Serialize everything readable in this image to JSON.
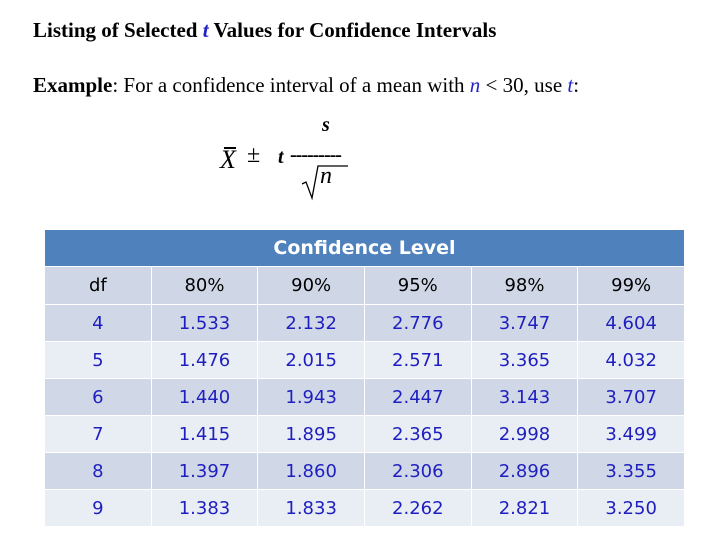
{
  "title": {
    "before": "Listing of Selected ",
    "t": "t",
    "after": " Values for Confidence Intervals"
  },
  "example": {
    "label": "Example",
    "text1": ": For a confidence interval of a mean with ",
    "n": "n",
    "text2": " < 30, use ",
    "t": "t",
    "text3": ":"
  },
  "formula": {
    "xbar": "X",
    "pm": "±",
    "t": "t",
    "dashes": "---------",
    "s": "s",
    "n": "n"
  },
  "table": {
    "group_header": "Confidence Level",
    "columns": [
      "df",
      "80%",
      "90%",
      "95%",
      "98%",
      "99%"
    ],
    "rows": [
      [
        "4",
        "1.533",
        "2.132",
        "2.776",
        "3.747",
        "4.604"
      ],
      [
        "5",
        "1.476",
        "2.015",
        "2.571",
        "3.365",
        "4.032"
      ],
      [
        "6",
        "1.440",
        "1.943",
        "2.447",
        "3.143",
        "3.707"
      ],
      [
        "7",
        "1.415",
        "1.895",
        "2.365",
        "2.998",
        "3.499"
      ],
      [
        "8",
        "1.397",
        "1.860",
        "2.306",
        "2.896",
        "3.355"
      ],
      [
        "9",
        "1.383",
        "1.833",
        "2.262",
        "2.821",
        "3.250"
      ]
    ],
    "colors": {
      "header": "#4f81bd",
      "value_text": "#1f1fbf"
    }
  }
}
